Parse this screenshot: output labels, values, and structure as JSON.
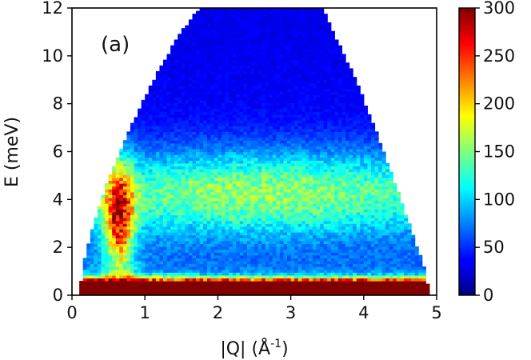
{
  "chart_data": {
    "type": "heatmap",
    "panel_label": "(a)",
    "xlabel_main": "|Q| (Å",
    "xlabel_sup": "-1",
    "xlabel_close": ")",
    "ylabel": "E (meV)",
    "xlim": [
      0,
      5
    ],
    "ylim": [
      0,
      12
    ],
    "x_ticks": [
      0,
      1,
      2,
      3,
      4,
      5
    ],
    "x_tick_labels": [
      "0",
      "1",
      "2",
      "3",
      "4",
      "5"
    ],
    "y_ticks": [
      0,
      2,
      4,
      6,
      8,
      10,
      12
    ],
    "y_tick_labels": [
      "0",
      "2",
      "4",
      "6",
      "8",
      "10",
      "12"
    ],
    "colorbar": {
      "colormap": "jet",
      "range": [
        0,
        300
      ],
      "ticks": [
        0,
        50,
        100,
        150,
        200,
        250,
        300
      ],
      "tick_labels": [
        "0",
        "50",
        "100",
        "150",
        "200",
        "250",
        "300"
      ]
    },
    "coverage_boundary": {
      "left": [
        [
          0.1,
          0.0
        ],
        [
          0.15,
          1.3
        ],
        [
          0.3,
          3.0
        ],
        [
          0.5,
          4.9
        ],
        [
          0.8,
          7.0
        ],
        [
          1.1,
          8.9
        ],
        [
          1.45,
          10.8
        ],
        [
          1.75,
          12.0
        ]
      ],
      "right": [
        [
          4.9,
          0.0
        ],
        [
          4.85,
          1.0
        ],
        [
          4.7,
          2.3
        ],
        [
          4.45,
          4.5
        ],
        [
          4.15,
          7.0
        ],
        [
          3.85,
          9.3
        ],
        [
          3.55,
          11.2
        ],
        [
          3.45,
          12.0
        ]
      ]
    },
    "intensity_features": [
      {
        "name": "elastic line",
        "E": 0.4,
        "intensity": 300
      },
      {
        "name": "low-Q excitation",
        "Q": 0.65,
        "E_range": [
          1.0,
          5.0
        ],
        "intensity": 240
      },
      {
        "name": "inelastic band",
        "E_center": 4.0,
        "intensity": 140
      },
      {
        "name": "high-E background",
        "E_range": [
          7.0,
          12.0
        ],
        "intensity": 30
      }
    ]
  }
}
